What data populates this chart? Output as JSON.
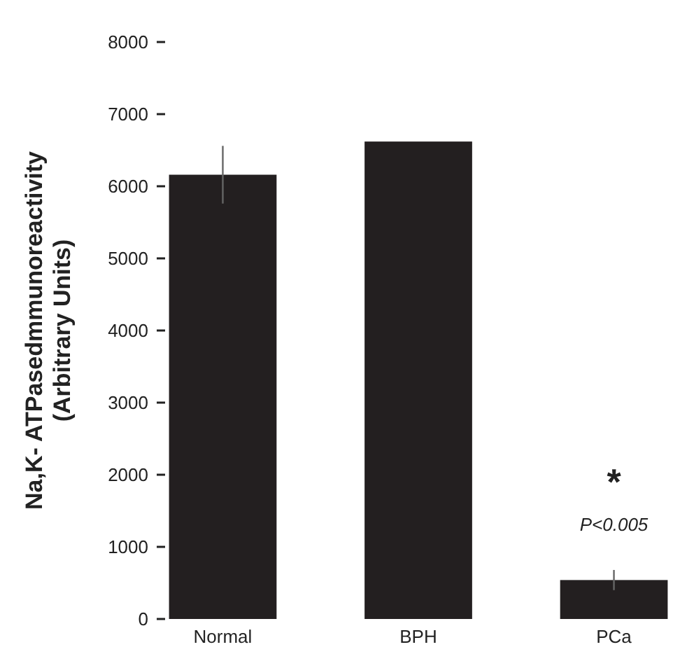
{
  "chart_data": {
    "type": "bar",
    "ylabel": "Na,K- ATPasedmmunoreactivity\n(Arbitrary Units)",
    "categories": [
      "Normal",
      "BPH",
      "PCa"
    ],
    "values": [
      6160,
      6620,
      540
    ],
    "errors": [
      400,
      null,
      140
    ],
    "color": "#231f20",
    "ylim": [
      0,
      8000
    ],
    "yticks": [
      0,
      1000,
      2000,
      3000,
      4000,
      5000,
      6000,
      7000,
      8000
    ],
    "grid": false,
    "annotations": [
      "*",
      "P<0.005"
    ]
  }
}
